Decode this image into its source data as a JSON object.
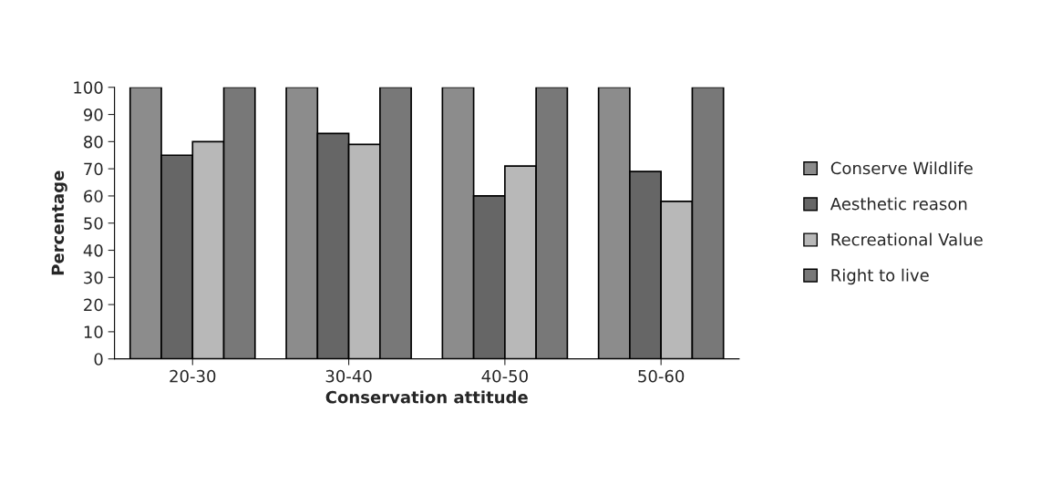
{
  "chart_data": {
    "type": "bar",
    "xlabel": "Conservation attitude",
    "ylabel": "Percentage",
    "categories": [
      "20-30",
      "30-40",
      "40-50",
      "50-60"
    ],
    "series": [
      {
        "name": "Conserve Wildlife",
        "color": "#8c8c8c",
        "values": [
          100,
          100,
          100,
          100
        ]
      },
      {
        "name": "Aesthetic reason",
        "color": "#666666",
        "values": [
          75,
          83,
          60,
          69
        ]
      },
      {
        "name": "Recreational Value",
        "color": "#b8b8b8",
        "values": [
          80,
          79,
          71,
          58
        ]
      },
      {
        "name": "Right to live",
        "color": "#787878",
        "values": [
          100,
          100,
          100,
          100
        ]
      }
    ],
    "ylim": [
      0,
      100
    ],
    "yticks": [
      0,
      10,
      20,
      30,
      40,
      50,
      60,
      70,
      80,
      90,
      100
    ],
    "grid": false,
    "legend": "right"
  }
}
